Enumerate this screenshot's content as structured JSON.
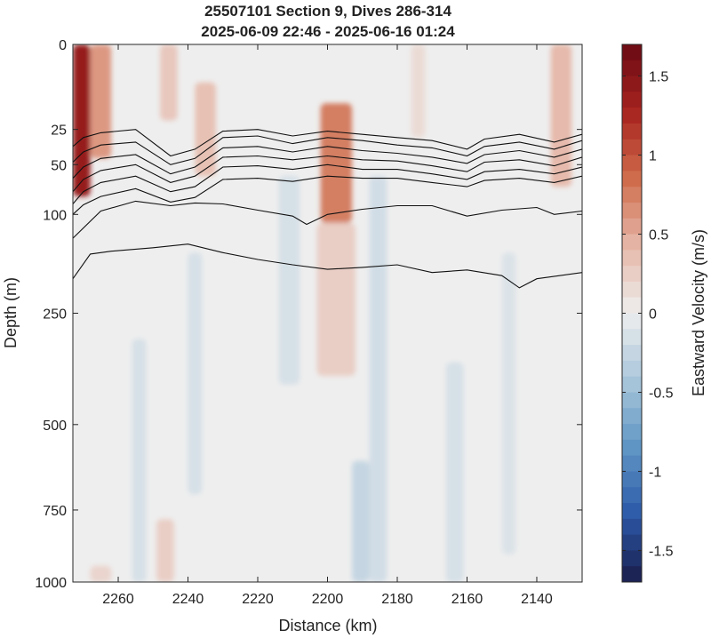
{
  "chart_data": {
    "type": "heatmap",
    "title": "25507101 Section 9, Dives 286-314",
    "subtitle": "2025-06-09 22:46 - 2025-06-16 01:24",
    "xlabel": "Distance (km)",
    "ylabel": "Depth (m)",
    "colorbar_label": "Eastward Velocity (m/s)",
    "xlim": [
      2273,
      2127
    ],
    "x_ticks": [
      "2260",
      "2240",
      "2220",
      "2200",
      "2180",
      "2160",
      "2140"
    ],
    "x_tick_values": [
      2260,
      2240,
      2220,
      2200,
      2180,
      2160,
      2140
    ],
    "y_scale": "sqrt",
    "ylim": [
      0,
      1000
    ],
    "y_ticks": [
      "0",
      "25",
      "50",
      "100",
      "250",
      "500",
      "750",
      "1000"
    ],
    "y_tick_values": [
      0,
      25,
      50,
      100,
      250,
      500,
      750,
      1000
    ],
    "clim": [
      -1.7,
      1.7
    ],
    "colorbar_ticks": [
      "1.5",
      "1",
      "0.5",
      "0",
      "-0.5",
      "-1",
      "-1.5"
    ],
    "colorbar_tick_values": [
      1.5,
      1,
      0.5,
      0,
      -0.5,
      -1,
      -1.5
    ],
    "colormap": [
      "#1a1c4a",
      "#2c59a8",
      "#5f95c4",
      "#a9c6da",
      "#eeeeee",
      "#e6b7a8",
      "#cf6c4c",
      "#a8241f",
      "#6a0a14"
    ],
    "grid": false,
    "velocity_features": [
      {
        "x_start": 2273,
        "x_end": 2268,
        "depth_top": 0,
        "depth_bottom": 80,
        "velocity": 1.4
      },
      {
        "x_start": 2268,
        "x_end": 2262,
        "depth_top": 0,
        "depth_bottom": 45,
        "velocity": 0.6
      },
      {
        "x_start": 2248,
        "x_end": 2243,
        "depth_top": 0,
        "depth_bottom": 20,
        "velocity": 0.3
      },
      {
        "x_start": 2238,
        "x_end": 2232,
        "depth_top": 5,
        "depth_bottom": 60,
        "velocity": 0.35
      },
      {
        "x_start": 2202,
        "x_end": 2193,
        "depth_top": 12,
        "depth_bottom": 110,
        "velocity": 0.75
      },
      {
        "x_start": 2203,
        "x_end": 2192,
        "depth_top": 110,
        "depth_bottom": 380,
        "velocity": 0.25
      },
      {
        "x_start": 2136,
        "x_end": 2130,
        "depth_top": 0,
        "depth_bottom": 70,
        "velocity": 0.4
      },
      {
        "x_start": 2176,
        "x_end": 2172,
        "depth_top": 0,
        "depth_bottom": 30,
        "velocity": 0.15
      },
      {
        "x_start": 2249,
        "x_end": 2244,
        "depth_top": 780,
        "depth_bottom": 1000,
        "velocity": 0.25
      },
      {
        "x_start": 2268,
        "x_end": 2262,
        "depth_top": 940,
        "depth_bottom": 1000,
        "velocity": 0.2
      },
      {
        "x_start": 2256,
        "x_end": 2252,
        "depth_top": 300,
        "depth_bottom": 1000,
        "velocity": -0.15
      },
      {
        "x_start": 2240,
        "x_end": 2236,
        "depth_top": 150,
        "depth_bottom": 700,
        "velocity": -0.15
      },
      {
        "x_start": 2214,
        "x_end": 2208,
        "depth_top": 60,
        "depth_bottom": 400,
        "velocity": -0.15
      },
      {
        "x_start": 2188,
        "x_end": 2183,
        "depth_top": 60,
        "depth_bottom": 1000,
        "velocity": -0.18
      },
      {
        "x_start": 2193,
        "x_end": 2188,
        "depth_top": 600,
        "depth_bottom": 1000,
        "velocity": -0.25
      },
      {
        "x_start": 2166,
        "x_end": 2161,
        "depth_top": 350,
        "depth_bottom": 1000,
        "velocity": -0.15
      },
      {
        "x_start": 2150,
        "x_end": 2146,
        "depth_top": 150,
        "depth_bottom": 900,
        "velocity": -0.12
      }
    ],
    "contour_lines": [
      {
        "x": [
          2273,
          2270,
          2265,
          2255,
          2245,
          2238,
          2230,
          2220,
          2210,
          2200,
          2190,
          2180,
          2170,
          2160,
          2155,
          2145,
          2135,
          2127
        ],
        "y": [
          36,
          30,
          27,
          25,
          43,
          38,
          26,
          25,
          29,
          26,
          28,
          30,
          32,
          38,
          31,
          28,
          33,
          28
        ]
      },
      {
        "x": [
          2273,
          2270,
          2265,
          2255,
          2245,
          2238,
          2230,
          2220,
          2210,
          2200,
          2190,
          2180,
          2170,
          2160,
          2155,
          2145,
          2135,
          2127
        ],
        "y": [
          48,
          40,
          35,
          33,
          50,
          45,
          30,
          29,
          34,
          30,
          32,
          35,
          37,
          43,
          36,
          33,
          38,
          32
        ]
      },
      {
        "x": [
          2273,
          2270,
          2265,
          2255,
          2245,
          2238,
          2230,
          2220,
          2210,
          2200,
          2190,
          2180,
          2170,
          2160,
          2155,
          2145,
          2135,
          2127
        ],
        "y": [
          62,
          52,
          45,
          42,
          58,
          52,
          37,
          36,
          40,
          36,
          39,
          41,
          44,
          49,
          42,
          39,
          44,
          38
        ]
      },
      {
        "x": [
          2273,
          2270,
          2265,
          2255,
          2245,
          2238,
          2230,
          2220,
          2210,
          2200,
          2190,
          2180,
          2170,
          2160,
          2155,
          2145,
          2135,
          2127
        ],
        "y": [
          75,
          63,
          55,
          50,
          66,
          60,
          44,
          43,
          46,
          43,
          46,
          47,
          51,
          56,
          48,
          46,
          51,
          44
        ]
      },
      {
        "x": [
          2273,
          2270,
          2265,
          2255,
          2245,
          2238,
          2230,
          2220,
          2210,
          2200,
          2190,
          2180,
          2170,
          2160,
          2155,
          2145,
          2135,
          2127
        ],
        "y": [
          88,
          75,
          66,
          60,
          75,
          70,
          52,
          51,
          54,
          50,
          54,
          54,
          58,
          63,
          56,
          54,
          58,
          52
        ]
      },
      {
        "x": [
          2273,
          2270,
          2265,
          2255,
          2245,
          2238,
          2230,
          2220,
          2210,
          2200,
          2190,
          2180,
          2170,
          2160,
          2155,
          2145,
          2135,
          2127
        ],
        "y": [
          100,
          89,
          80,
          72,
          86,
          81,
          63,
          62,
          65,
          60,
          62,
          62,
          66,
          70,
          64,
          62,
          66,
          60
        ]
      },
      {
        "x": [
          2273,
          2265,
          2255,
          2245,
          2238,
          2230,
          2220,
          2210,
          2206,
          2200,
          2190,
          2180,
          2170,
          2160,
          2150,
          2140,
          2135,
          2127
        ],
        "y": [
          130,
          96,
          85,
          90,
          87,
          88,
          95,
          102,
          112,
          100,
          94,
          90,
          90,
          102,
          95,
          92,
          100,
          96
        ]
      },
      {
        "x": [
          2273,
          2268,
          2262,
          2250,
          2240,
          2230,
          2220,
          2210,
          2200,
          2190,
          2180,
          2170,
          2160,
          2150,
          2145,
          2140,
          2127
        ],
        "y": [
          190,
          152,
          148,
          143,
          138,
          150,
          160,
          168,
          175,
          172,
          168,
          180,
          176,
          185,
          205,
          190,
          180
        ]
      }
    ]
  }
}
